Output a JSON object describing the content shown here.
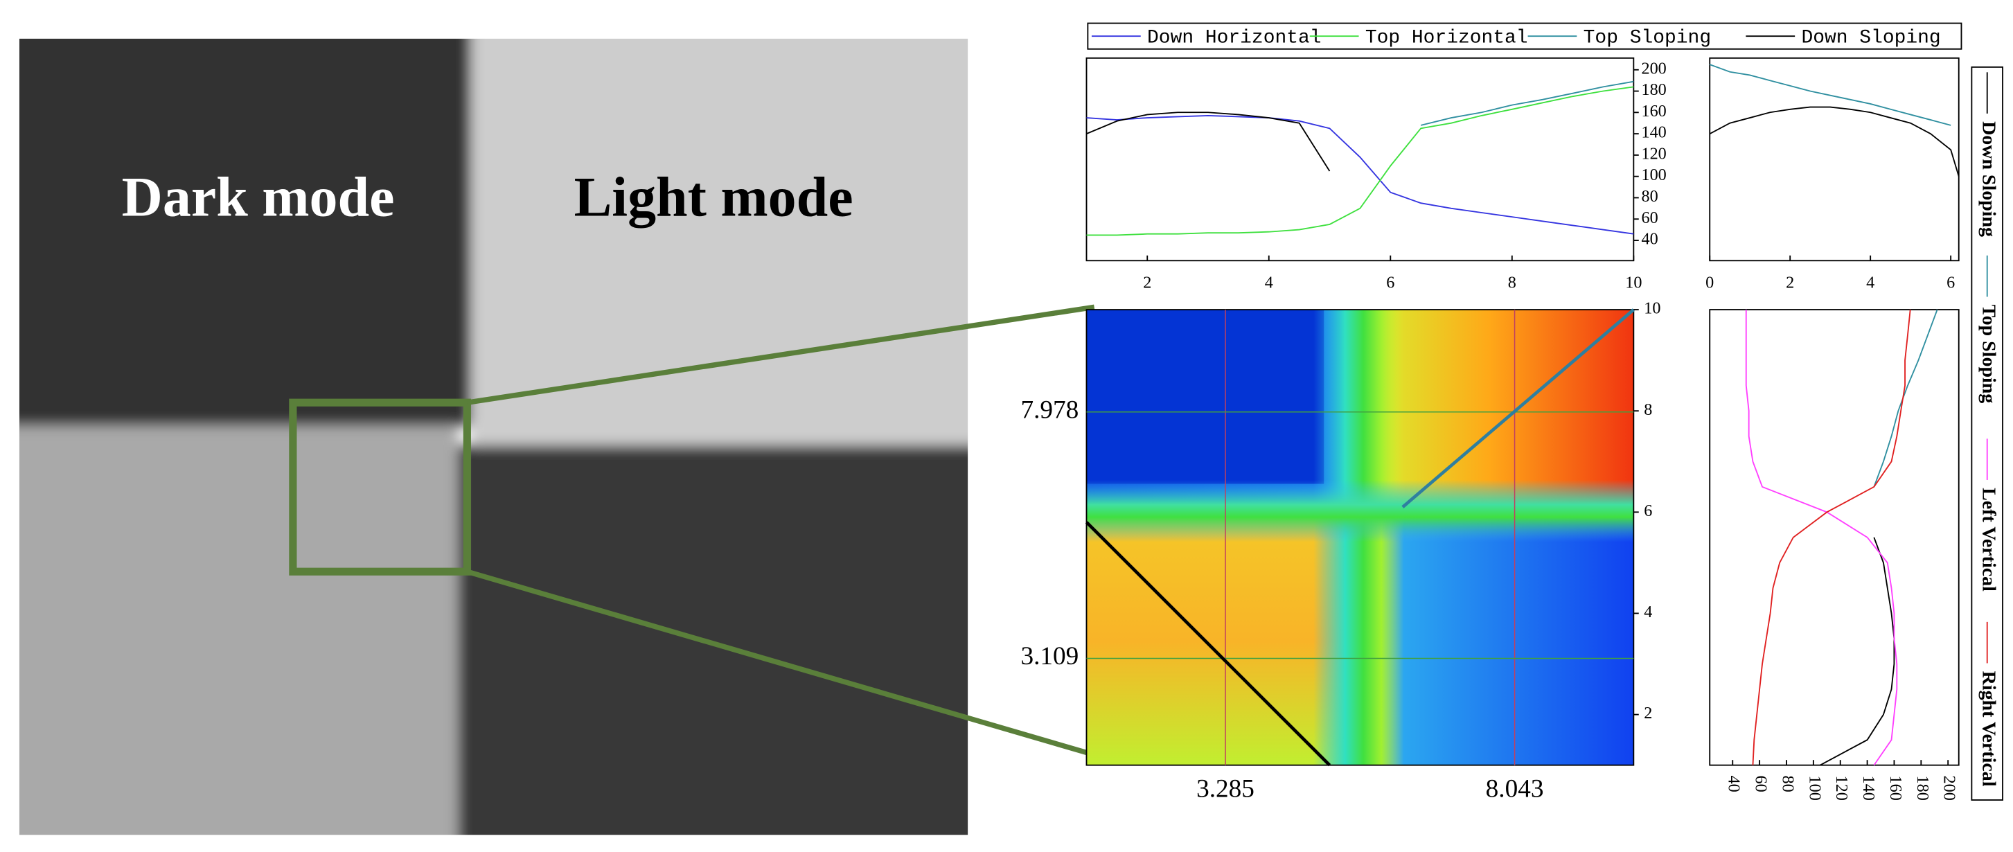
{
  "image": {
    "labels": [
      "Dark mode",
      "Light mode"
    ]
  },
  "chart_data": [
    {
      "type": "line",
      "x": [
        1,
        1.5,
        2,
        2.5,
        3,
        3.5,
        4,
        4.5,
        5,
        5.5,
        6,
        6.5,
        7,
        7.5,
        8,
        8.5,
        9,
        9.5,
        10
      ],
      "series": [
        {
          "name": "Down Horizontal",
          "color": "#3434e0",
          "values": [
            155,
            153,
            155,
            156,
            157,
            156,
            155,
            152,
            145,
            118,
            85,
            75,
            70,
            66,
            62,
            58,
            54,
            50,
            46
          ]
        },
        {
          "name": "Top Horizontal",
          "color": "#3ee03e",
          "values": [
            45,
            45,
            46,
            46,
            47,
            47,
            48,
            50,
            55,
            70,
            110,
            145,
            150,
            157,
            163,
            169,
            175,
            180,
            184
          ]
        },
        {
          "name": "Top Sloping",
          "color": "#2f8fa0",
          "values": [
            null,
            null,
            null,
            null,
            null,
            null,
            null,
            null,
            null,
            null,
            null,
            148,
            155,
            160,
            167,
            172,
            178,
            184,
            189
          ]
        },
        {
          "name": "Down Sloping",
          "color": "#000000",
          "values": [
            140,
            152,
            158,
            160,
            160,
            158,
            155,
            150,
            105,
            null,
            null,
            null,
            null,
            null,
            null,
            null,
            null,
            null,
            null
          ]
        }
      ],
      "xlim": [
        1,
        10
      ],
      "xticks": [
        2,
        4,
        6,
        8,
        10
      ],
      "ylim": [
        21,
        211
      ],
      "yticks": [
        40,
        60,
        80,
        100,
        120,
        140,
        160,
        180,
        200
      ]
    },
    {
      "type": "line",
      "x": [
        0,
        0.5,
        1,
        1.5,
        2,
        2.5,
        3,
        3.5,
        4,
        4.5,
        5,
        5.5,
        6,
        6.2
      ],
      "series": [
        {
          "name": "Top Sloping",
          "color": "#2f8fa0",
          "values": [
            205,
            198,
            195,
            190,
            185,
            180,
            176,
            172,
            168,
            163,
            158,
            153,
            148,
            null
          ]
        },
        {
          "name": "Down Sloping",
          "color": "#000000",
          "values": [
            140,
            150,
            155,
            160,
            163,
            165,
            165,
            163,
            160,
            155,
            150,
            140,
            125,
            100
          ]
        }
      ],
      "xlim": [
        0,
        6.2
      ],
      "xticks": [
        0,
        2,
        4,
        6
      ],
      "ylim": [
        21,
        211
      ]
    },
    {
      "type": "heatmap",
      "xlim": [
        1,
        10
      ],
      "ylim": [
        1,
        10
      ],
      "yticks": [
        2,
        4,
        6,
        8,
        10
      ],
      "x_markers": [
        3.285,
        8.043
      ],
      "y_markers": [
        7.978,
        3.109
      ],
      "lines": [
        {
          "color": "#000000",
          "x": [
            1,
            5
          ],
          "y": [
            5.8,
            1
          ]
        },
        {
          "color": "#2f7f9f",
          "x": [
            6.2,
            10
          ],
          "y": [
            6.1,
            10
          ]
        }
      ]
    },
    {
      "type": "line",
      "y": [
        1,
        1.5,
        2,
        2.5,
        3,
        3.5,
        4,
        4.5,
        5,
        5.5,
        6,
        6.5,
        7,
        7.5,
        8,
        8.5,
        9,
        9.5,
        10
      ],
      "series": [
        {
          "name": "Down Sloping",
          "color": "#000000",
          "values": [
            105,
            140,
            152,
            158,
            160,
            160,
            158,
            155,
            152,
            145,
            null,
            null,
            null,
            null,
            null,
            null,
            null,
            null,
            null
          ]
        },
        {
          "name": "Top Sloping",
          "color": "#2f8fa0",
          "values": [
            null,
            null,
            null,
            null,
            null,
            null,
            null,
            null,
            null,
            null,
            null,
            145,
            152,
            158,
            163,
            170,
            178,
            185,
            192
          ]
        },
        {
          "name": "Left Vertical",
          "color": "#ff40ff",
          "values": [
            145,
            158,
            160,
            162,
            162,
            160,
            160,
            158,
            155,
            140,
            110,
            62,
            55,
            52,
            52,
            50,
            50,
            50,
            50
          ]
        },
        {
          "name": "Right Vertical",
          "color": "#e02020",
          "values": [
            55,
            56,
            58,
            60,
            62,
            65,
            68,
            70,
            75,
            85,
            110,
            145,
            158,
            162,
            165,
            168,
            168,
            170,
            172
          ]
        }
      ],
      "xlim": [
        23,
        208
      ],
      "xticks": [
        40,
        60,
        80,
        100,
        120,
        140,
        160,
        180,
        200
      ],
      "ylim": [
        1,
        10
      ]
    }
  ]
}
